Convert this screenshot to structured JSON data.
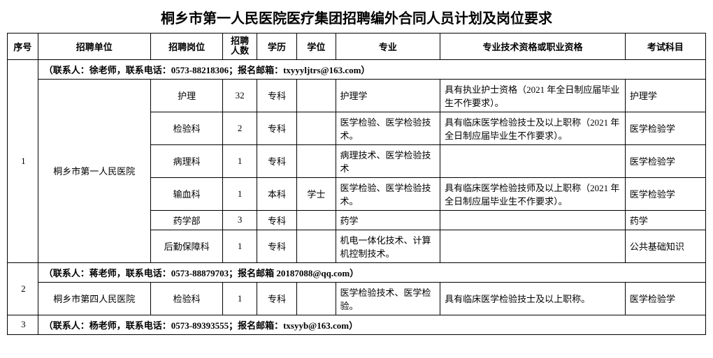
{
  "title": "桐乡市第一人民医院医疗集团招聘编外合同人员计划及岗位要求",
  "headers": {
    "seq": "序号",
    "unit": "招聘单位",
    "position": "招聘岗位",
    "number": "招聘人数",
    "education": "学历",
    "degree": "学位",
    "major": "专业",
    "qualification": "专业技术资格或职业资格",
    "exam": "考试科目"
  },
  "groups": [
    {
      "seq": "1",
      "contact": "（联系人：徐老师，联系电话：0573-88218306；报名邮箱：txyyyljtrs@163.com）",
      "unit": "桐乡市第一人民医院",
      "rows": [
        {
          "position": "护理",
          "number": "32",
          "education": "专科",
          "degree": "",
          "major": "护理学",
          "qualification": "具有执业护士资格（2021 年全日制应届毕业生不作要求）。",
          "exam": "护理学"
        },
        {
          "position": "检验科",
          "number": "2",
          "education": "专科",
          "degree": "",
          "major": "医学检验、医学检验技术。",
          "qualification": "具有临床医学检验技士及以上职称（2021 年全日制应届毕业生不作要求）。",
          "exam": "医学检验学"
        },
        {
          "position": "病理科",
          "number": "1",
          "education": "专科",
          "degree": "",
          "major": "病理技术、医学检验技术",
          "qualification": "",
          "exam": "医学检验学"
        },
        {
          "position": "输血科",
          "number": "1",
          "education": "本科",
          "degree": "学士",
          "major": "医学检验、医学检验技术。",
          "qualification": "具有临床医学检验技师及以上职称（2021 年全日制应届毕业生不作要求）。",
          "exam": "医学检验学"
        },
        {
          "position": "药学部",
          "number": "3",
          "education": "专科",
          "degree": "",
          "major": "药学",
          "qualification": "",
          "exam": "药学"
        },
        {
          "position": "后勤保障科",
          "number": "1",
          "education": "专科",
          "degree": "",
          "major": "机电一体化技术、计算机控制技术。",
          "qualification": "",
          "exam": "公共基础知识"
        }
      ]
    },
    {
      "seq": "2",
      "contact": "（联系人：蒋老师，联系电话：0573-88879703；报名邮箱 20187088@qq.com）",
      "unit": "桐乡市第四人民医院",
      "rows": [
        {
          "position": "检验科",
          "number": "1",
          "education": "专科",
          "degree": "",
          "major": "医学检验技术、医学检验。",
          "qualification": "具有临床医学检验技士及以上职称。",
          "exam": "医学检验学"
        }
      ]
    },
    {
      "seq": "3",
      "contact": "（联系人：杨老师，联系电话：0573-89393555；报名邮箱：txsyyb@163.com）",
      "unit": "",
      "rows": []
    }
  ]
}
